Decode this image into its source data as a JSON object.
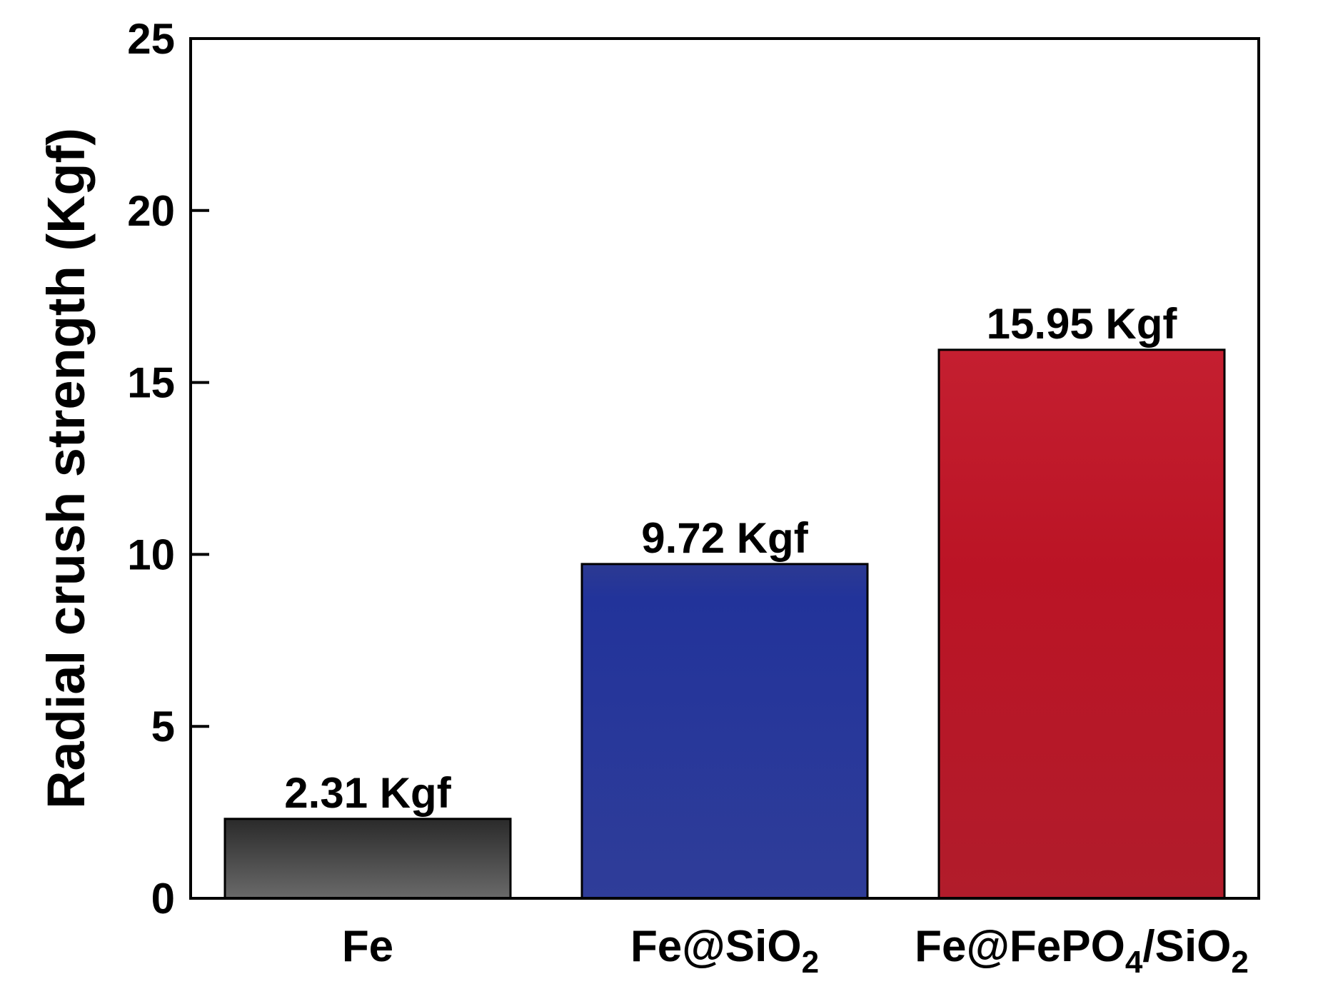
{
  "chart_data": {
    "type": "bar",
    "categories": [
      {
        "main": "Fe",
        "parts": [
          {
            "t": "Fe",
            "sub": false
          }
        ]
      },
      {
        "main": "Fe@SiO2",
        "parts": [
          {
            "t": "Fe@SiO",
            "sub": false
          },
          {
            "t": "2",
            "sub": true
          }
        ]
      },
      {
        "main": "Fe@FePO4/SiO2",
        "parts": [
          {
            "t": "Fe@FePO",
            "sub": false
          },
          {
            "t": "4",
            "sub": true
          },
          {
            "t": "/SiO",
            "sub": false
          },
          {
            "t": "2",
            "sub": true
          }
        ]
      }
    ],
    "values": [
      2.31,
      9.72,
      15.95
    ],
    "data_labels": [
      "2.31 Kgf",
      "9.72 Kgf",
      "15.95 Kgf"
    ],
    "colors": [
      "#4a4a4a",
      "#2e3a94",
      "#b81c2a"
    ],
    "ylabel": "Radial crush strength (Kgf)",
    "xlabel": "",
    "ylim": [
      0,
      25
    ],
    "yticks": [
      0,
      5,
      10,
      15,
      20,
      25
    ],
    "grid": false,
    "legend": "none"
  }
}
